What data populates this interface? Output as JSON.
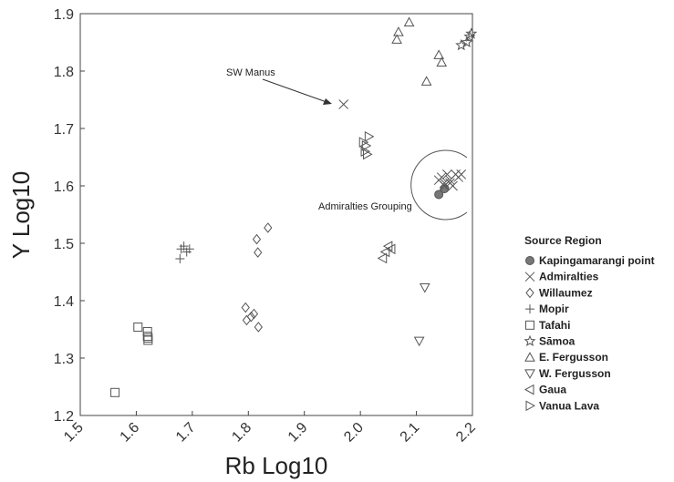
{
  "chart_data": {
    "type": "scatter",
    "xlabel": "Rb Log10",
    "ylabel": "Y Log10",
    "xlim": [
      1.5,
      2.2
    ],
    "ylim": [
      1.2,
      1.9
    ],
    "xticks": [
      "1.5",
      "1.6",
      "1.7",
      "1.8",
      "1.9",
      "2.0",
      "2.1",
      "2.2"
    ],
    "yticks": [
      "1.2",
      "1.3",
      "1.4",
      "1.5",
      "1.6",
      "1.7",
      "1.8",
      "1.9"
    ],
    "grid": false,
    "legend_title": "Source Region",
    "legend_position": "right",
    "annotations": [
      {
        "text": "SW Manus",
        "points_to": [
          1.965,
          1.74
        ]
      },
      {
        "text": "Admiralties Grouping",
        "circle_center": [
          2.15,
          1.605
        ]
      }
    ],
    "series": [
      {
        "name": "Kapingamarangi point",
        "marker": "filled-circle",
        "color": "#777777",
        "x": [
          2.14,
          2.15
        ],
        "y": [
          1.585,
          1.595
        ]
      },
      {
        "name": "Admiralties",
        "marker": "x",
        "color": "#666666",
        "x": [
          1.97,
          2.14,
          2.145,
          2.15,
          2.155,
          2.16,
          2.165,
          2.17,
          2.175,
          2.18,
          2.15,
          2.16
        ],
        "y": [
          1.742,
          1.61,
          1.615,
          1.605,
          1.62,
          1.61,
          1.6,
          1.62,
          1.615,
          1.62,
          1.6,
          1.605
        ]
      },
      {
        "name": "Willaumez",
        "marker": "diamond",
        "color": "#666666",
        "x": [
          1.835,
          1.815,
          1.817,
          1.795,
          1.797,
          1.805,
          1.81,
          1.818
        ],
        "y": [
          1.527,
          1.507,
          1.484,
          1.388,
          1.366,
          1.372,
          1.377,
          1.354
        ]
      },
      {
        "name": "Mopir",
        "marker": "plus",
        "color": "#666666",
        "x": [
          1.68,
          1.685,
          1.69,
          1.695,
          1.678
        ],
        "y": [
          1.49,
          1.495,
          1.485,
          1.49,
          1.473
        ]
      },
      {
        "name": "Tafahi",
        "marker": "square",
        "color": "#666666",
        "x": [
          1.562,
          1.603,
          1.62,
          1.62,
          1.621,
          1.621
        ],
        "y": [
          1.24,
          1.354,
          1.346,
          1.338,
          1.335,
          1.331
        ]
      },
      {
        "name": "Sāmoa",
        "marker": "star",
        "color": "#666666",
        "x": [
          2.18,
          2.19,
          2.195,
          2.198
        ],
        "y": [
          1.845,
          1.85,
          1.86,
          1.865
        ]
      },
      {
        "name": "E. Fergusson",
        "marker": "triangle-up",
        "color": "#666666",
        "x": [
          2.087,
          2.068,
          2.065,
          2.14,
          2.145,
          2.118
        ],
        "y": [
          1.885,
          1.868,
          1.855,
          1.828,
          1.815,
          1.782
        ]
      },
      {
        "name": "W. Fergusson",
        "marker": "triangle-down",
        "color": "#666666",
        "x": [
          2.115,
          2.105
        ],
        "y": [
          1.423,
          1.33
        ]
      },
      {
        "name": "Gaua",
        "marker": "triangle-left",
        "color": "#666666",
        "x": [
          2.05,
          2.055,
          2.045,
          2.04
        ],
        "y": [
          1.495,
          1.49,
          1.485,
          1.474
        ]
      },
      {
        "name": "Vanua Lava",
        "marker": "triangle-right",
        "color": "#666666",
        "x": [
          2.015,
          2.005,
          2.01,
          2.008,
          2.012
        ],
        "y": [
          1.686,
          1.676,
          1.67,
          1.66,
          1.655
        ]
      }
    ]
  }
}
